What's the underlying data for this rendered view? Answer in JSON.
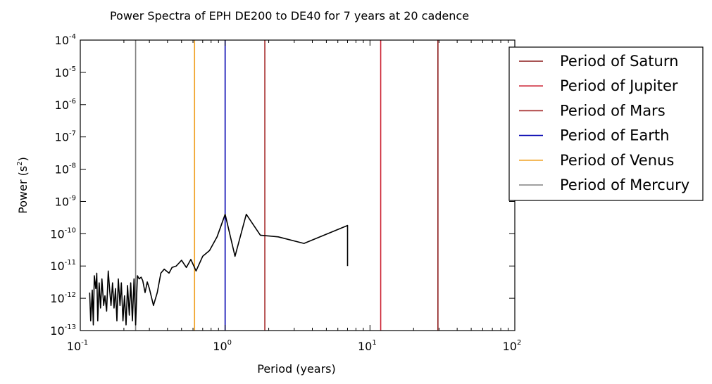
{
  "chart_data": {
    "type": "line",
    "title": "Power Spectra of EPH DE200 to DE40 for 7 years at 20 cadence",
    "xlabel": "Period (years)",
    "ylabel_base": "Power (s",
    "ylabel_sup": "2",
    "ylabel_end": ")",
    "xscale": "log",
    "yscale": "log",
    "xlim": [
      0.1,
      100
    ],
    "ylim": [
      1e-13,
      0.0001
    ],
    "x_ticks": [
      {
        "value": 0.1,
        "base": "10",
        "exp": "-1"
      },
      {
        "value": 1,
        "base": "10",
        "exp": "0"
      },
      {
        "value": 10,
        "base": "10",
        "exp": "1"
      },
      {
        "value": 100,
        "base": "10",
        "exp": "2"
      }
    ],
    "y_ticks": [
      {
        "value": 1e-13,
        "base": "10",
        "exp": "-13"
      },
      {
        "value": 1e-12,
        "base": "10",
        "exp": "-12"
      },
      {
        "value": 1e-11,
        "base": "10",
        "exp": "-11"
      },
      {
        "value": 1e-10,
        "base": "10",
        "exp": "-10"
      },
      {
        "value": 1e-09,
        "base": "10",
        "exp": "-9"
      },
      {
        "value": 1e-08,
        "base": "10",
        "exp": "-8"
      },
      {
        "value": 1e-07,
        "base": "10",
        "exp": "-7"
      },
      {
        "value": 1e-06,
        "base": "10",
        "exp": "-6"
      },
      {
        "value": 1e-05,
        "base": "10",
        "exp": "-5"
      },
      {
        "value": 0.0001,
        "base": "10",
        "exp": "-4"
      }
    ],
    "legend_position": "outside-right",
    "vlines": [
      {
        "name": "Period of Saturn",
        "x": 29.46,
        "color": "#8b1a1a"
      },
      {
        "name": "Period of Jupiter",
        "x": 11.86,
        "color": "#cc2233"
      },
      {
        "name": "Period of Mars",
        "x": 1.88,
        "color": "#a52a2a"
      },
      {
        "name": "Period of Earth",
        "x": 1.0,
        "color": "#0000b0"
      },
      {
        "name": "Period of Venus",
        "x": 0.615,
        "color": "#f0a020"
      },
      {
        "name": "Period of Mercury",
        "x": 0.241,
        "color": "#808080"
      }
    ],
    "series": [
      {
        "color": "#000000",
        "x": [
          0.116,
          0.118,
          0.121,
          0.123,
          0.125,
          0.128,
          0.13,
          0.132,
          0.135,
          0.138,
          0.141,
          0.145,
          0.148,
          0.152,
          0.156,
          0.16,
          0.163,
          0.167,
          0.171,
          0.175,
          0.179,
          0.183,
          0.188,
          0.192,
          0.197,
          0.202,
          0.207,
          0.212,
          0.218,
          0.223,
          0.229,
          0.235,
          0.241,
          0.248,
          0.255,
          0.263,
          0.27,
          0.28,
          0.29,
          0.3,
          0.32,
          0.34,
          0.36,
          0.38,
          0.41,
          0.43,
          0.46,
          0.5,
          0.54,
          0.58,
          0.63,
          0.7,
          0.78,
          0.88,
          1.0,
          1.17,
          1.4,
          1.75,
          2.33,
          3.5,
          7.0,
          7.0
        ],
        "y": [
          1.5e-12,
          2e-13,
          1.8e-12,
          1.5e-13,
          5e-12,
          2e-12,
          6e-12,
          2e-13,
          3e-12,
          5e-13,
          4e-12,
          6e-13,
          1.2e-12,
          4e-13,
          7e-12,
          1.5e-12,
          6e-13,
          3e-12,
          5e-13,
          2e-12,
          2e-13,
          4e-12,
          6e-13,
          3e-12,
          2e-13,
          1.2e-12,
          1.5e-13,
          2.5e-12,
          3e-13,
          3e-12,
          2e-13,
          4e-12,
          1.5e-13,
          5e-12,
          4e-12,
          4.5e-12,
          3.5e-12,
          1.5e-12,
          3.2e-12,
          2e-12,
          6e-13,
          1.5e-12,
          6e-12,
          8e-12,
          6e-12,
          9e-12,
          1e-11,
          1.5e-11,
          9e-12,
          1.6e-11,
          7e-12,
          2e-11,
          3e-11,
          8e-11,
          4e-10,
          2e-11,
          4e-10,
          9e-11,
          8e-11,
          5e-11,
          1.8e-10,
          1e-11
        ]
      }
    ]
  }
}
